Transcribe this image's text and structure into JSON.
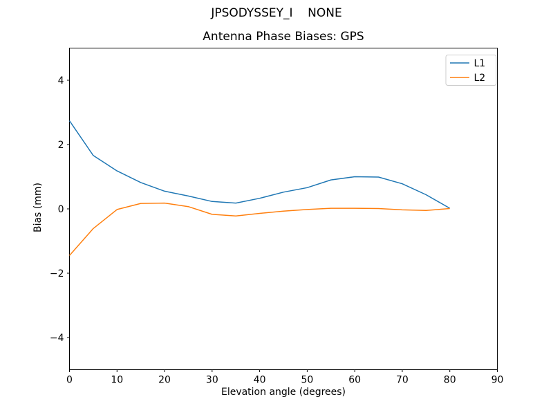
{
  "figure": {
    "suptitle": "JPSODYSSEY_I    NONE",
    "background": "#ffffff"
  },
  "chart_data": {
    "type": "line",
    "title": "Antenna Phase Biases: GPS",
    "suptitle": "JPSODYSSEY_I    NONE",
    "xlabel": "Elevation angle (degrees)",
    "ylabel": "Bias (mm)",
    "x": [
      0,
      5,
      10,
      15,
      20,
      25,
      30,
      35,
      40,
      45,
      50,
      55,
      60,
      65,
      70,
      75,
      80
    ],
    "series": [
      {
        "name": "L1",
        "color": "#1f77b4",
        "values": [
          2.74,
          1.66,
          1.18,
          0.82,
          0.55,
          0.4,
          0.23,
          0.18,
          0.33,
          0.52,
          0.66,
          0.9,
          1.0,
          0.99,
          0.78,
          0.44,
          0.02
        ]
      },
      {
        "name": "L2",
        "color": "#ff7f0e",
        "values": [
          -1.45,
          -0.61,
          -0.02,
          0.17,
          0.18,
          0.07,
          -0.17,
          -0.22,
          -0.14,
          -0.07,
          -0.02,
          0.02,
          0.02,
          0.01,
          -0.03,
          -0.05,
          0.01
        ]
      }
    ],
    "xlim": [
      0,
      90
    ],
    "ylim": [
      -5,
      5
    ],
    "xticks": [
      0,
      10,
      20,
      30,
      40,
      50,
      60,
      70,
      80,
      90
    ],
    "yticks": {
      "values": [
        -4,
        -2,
        0,
        2,
        4
      ],
      "labels": [
        "−4",
        "−2",
        "0",
        "2",
        "4"
      ]
    },
    "grid": false,
    "legend": {
      "position": "upper right",
      "entries": [
        "L1",
        "L2"
      ]
    },
    "frame_color": "#000000",
    "legend_border_color": "#cccccc"
  }
}
